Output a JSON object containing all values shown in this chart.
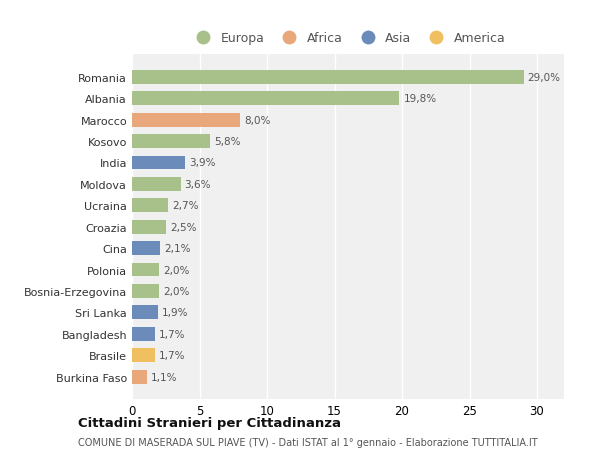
{
  "countries": [
    "Romania",
    "Albania",
    "Marocco",
    "Kosovo",
    "India",
    "Moldova",
    "Ucraina",
    "Croazia",
    "Cina",
    "Polonia",
    "Bosnia-Erzegovina",
    "Sri Lanka",
    "Bangladesh",
    "Brasile",
    "Burkina Faso"
  ],
  "values": [
    29.0,
    19.8,
    8.0,
    5.8,
    3.9,
    3.6,
    2.7,
    2.5,
    2.1,
    2.0,
    2.0,
    1.9,
    1.7,
    1.7,
    1.1
  ],
  "labels": [
    "29,0%",
    "19,8%",
    "8,0%",
    "5,8%",
    "3,9%",
    "3,6%",
    "2,7%",
    "2,5%",
    "2,1%",
    "2,0%",
    "2,0%",
    "1,9%",
    "1,7%",
    "1,7%",
    "1,1%"
  ],
  "continents": [
    "Europa",
    "Europa",
    "Africa",
    "Europa",
    "Asia",
    "Europa",
    "Europa",
    "Europa",
    "Asia",
    "Europa",
    "Europa",
    "Asia",
    "Asia",
    "America",
    "Africa"
  ],
  "colors": {
    "Europa": "#a8c08a",
    "Africa": "#e8a87c",
    "Asia": "#6b8cba",
    "America": "#f0c060"
  },
  "legend_order": [
    "Europa",
    "Africa",
    "Asia",
    "America"
  ],
  "bg_color": "#ffffff",
  "plot_bg_color": "#f0f0f0",
  "grid_color": "#ffffff",
  "title": "Cittadini Stranieri per Cittadinanza",
  "subtitle": "COMUNE DI MASERADA SUL PIAVE (TV) - Dati ISTAT al 1° gennaio - Elaborazione TUTTITALIA.IT",
  "xlim": [
    0,
    32
  ],
  "xticks": [
    0,
    5,
    10,
    15,
    20,
    25,
    30
  ]
}
